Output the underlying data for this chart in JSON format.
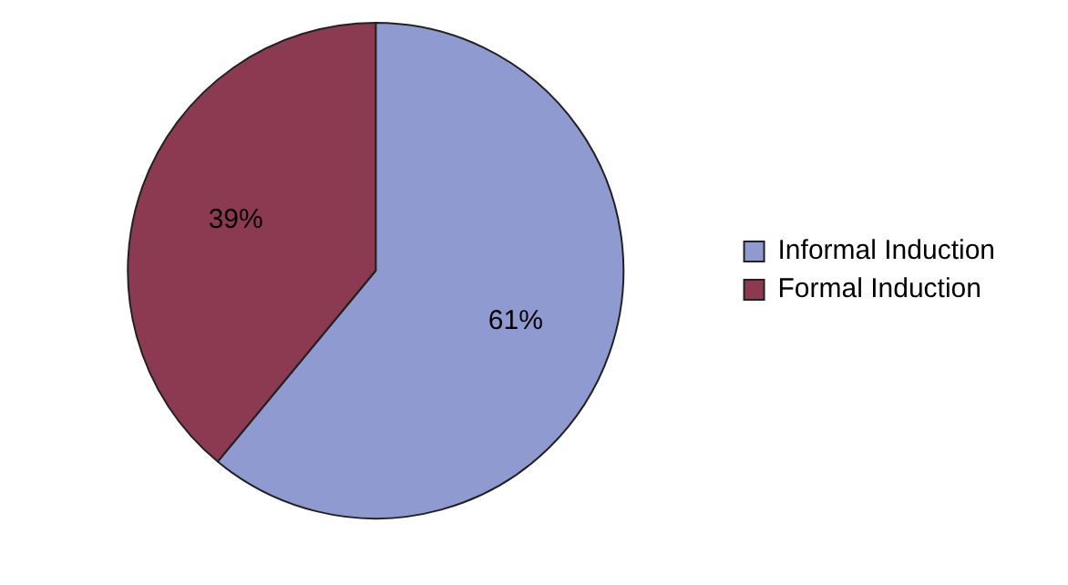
{
  "chart_data": {
    "type": "pie",
    "categories": [
      "Informal Induction",
      "Formal Induction"
    ],
    "values": [
      61,
      39
    ],
    "colors": [
      "#8e9ad0",
      "#8b3a52"
    ],
    "value_labels": [
      "61%",
      "39%"
    ],
    "legend": "right"
  }
}
